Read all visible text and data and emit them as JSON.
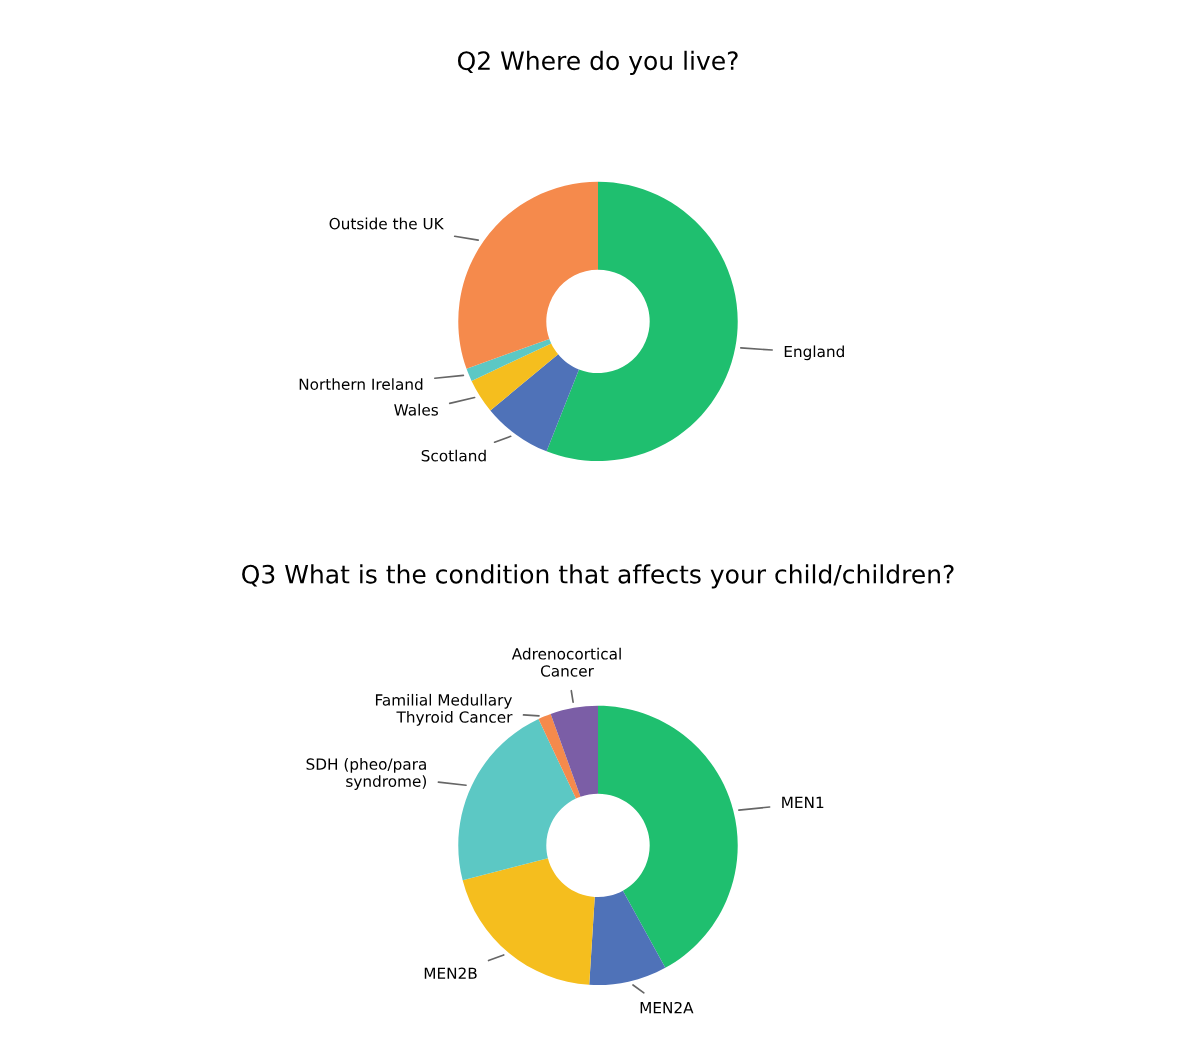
{
  "chart_data": [
    {
      "type": "donut",
      "title": "Q2 Where do you live?",
      "categories": [
        "England",
        "Scotland",
        "Wales",
        "Northern Ireland",
        "Outside the UK"
      ],
      "values": [
        56,
        8,
        4,
        1.5,
        30.5
      ],
      "colors": [
        "#1fbf6f",
        "#4f72b8",
        "#f5be1e",
        "#5cc8c4",
        "#f58a4c"
      ]
    },
    {
      "type": "donut",
      "title": "Q3 What is the condition that affects your child/children?",
      "categories": [
        "MEN1",
        "MEN2A",
        "MEN2B",
        "SDH (pheo/para\nsyndrome)",
        "Familial Medullary\nThyroid Cancer",
        "Adrenocortical\nCancer"
      ],
      "values": [
        42,
        9,
        20,
        22,
        1.5,
        5.5
      ],
      "colors": [
        "#1fbf6f",
        "#4f72b8",
        "#f5be1e",
        "#5cc8c4",
        "#f58a4c",
        "#7b5ea6"
      ]
    }
  ]
}
